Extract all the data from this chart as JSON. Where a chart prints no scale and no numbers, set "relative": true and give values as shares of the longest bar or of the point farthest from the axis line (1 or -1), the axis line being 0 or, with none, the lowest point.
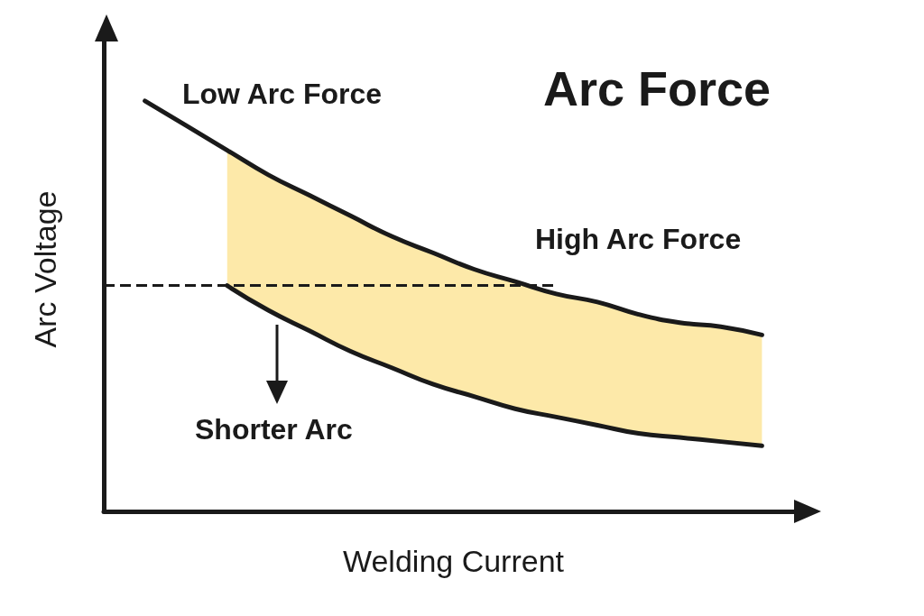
{
  "chart_data": {
    "type": "line",
    "title": "Arc Force",
    "xlabel": "Welding Current",
    "ylabel": "Arc Voltage",
    "relative": true,
    "categories": [
      null,
      null,
      null,
      null,
      null,
      null,
      null,
      null,
      null,
      null,
      null,
      null,
      null,
      null,
      null,
      null,
      null,
      null
    ],
    "series": [
      {
        "color": "#1a1a1a",
        "values": [
          null,
          1.0,
          0.94,
          0.88,
          0.82,
          0.77,
          0.72,
          0.67,
          0.63,
          0.59,
          0.56,
          0.53,
          0.51,
          0.48,
          0.46,
          0.45,
          0.43,
          null
        ],
        "lower": [
          null,
          null,
          null,
          0.55,
          0.49,
          0.44,
          0.39,
          0.35,
          0.31,
          0.28,
          0.25,
          0.23,
          0.21,
          0.19,
          0.18,
          0.17,
          0.16,
          null
        ],
        "upper": [
          null,
          null,
          null,
          0.88,
          0.82,
          0.77,
          0.72,
          0.67,
          0.63,
          0.59,
          0.56,
          0.53,
          0.51,
          0.48,
          0.46,
          0.45,
          0.43,
          null
        ]
      },
      {
        "color": "#1a1a1a",
        "values": [
          null,
          null,
          null,
          0.55,
          0.49,
          0.44,
          0.39,
          0.35,
          0.31,
          0.28,
          0.25,
          0.23,
          0.21,
          0.19,
          0.18,
          0.17,
          0.16,
          null
        ]
      }
    ],
    "ref_lines": [
      {
        "axis": "y",
        "value": 0.55,
        "label": null,
        "color": "#1a1a1a",
        "line_style": "dashed"
      }
    ],
    "annotations": [
      "Low Arc Force",
      "High Arc Force",
      "Shorter Arc"
    ],
    "marker": "none"
  }
}
